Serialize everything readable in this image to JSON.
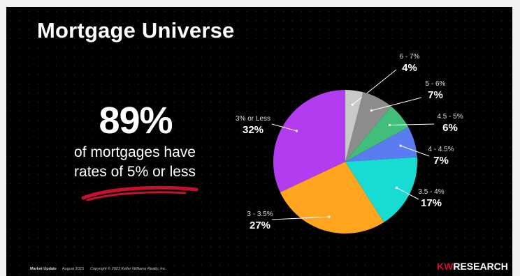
{
  "title": "Mortgage Universe",
  "stat": {
    "value": "89%",
    "line1": "of mortgages have",
    "line2": "rates of 5% or less"
  },
  "footer": {
    "left_bold": "Market Update",
    "date": "August 2023",
    "copyright": "Copyright © 2023 Keller Williams Realty, Inc.",
    "brand_kw": "KW",
    "brand_research": "RESEARCH"
  },
  "colors": {
    "accent_red": "#c8102e"
  },
  "chart_data": {
    "type": "pie",
    "slices": [
      {
        "label": "6 - 7%",
        "value": 4,
        "display": "4%",
        "color": "#c9c9c9"
      },
      {
        "label": "5 - 6%",
        "value": 7,
        "display": "7%",
        "color": "#8c8c8c"
      },
      {
        "label": "4.5 - 5%",
        "value": 6,
        "display": "6%",
        "color": "#3fbf7a"
      },
      {
        "label": "4 - 4.5%",
        "value": 7,
        "display": "7%",
        "color": "#5b7bf0"
      },
      {
        "label": "3.5 - 4%",
        "value": 17,
        "display": "17%",
        "color": "#17dcd4"
      },
      {
        "label": "3 - 3.5%",
        "value": 27,
        "display": "27%",
        "color": "#ffa51e"
      },
      {
        "label": "3% or Less",
        "value": 32,
        "display": "32%",
        "color": "#b43cf0"
      }
    ]
  }
}
